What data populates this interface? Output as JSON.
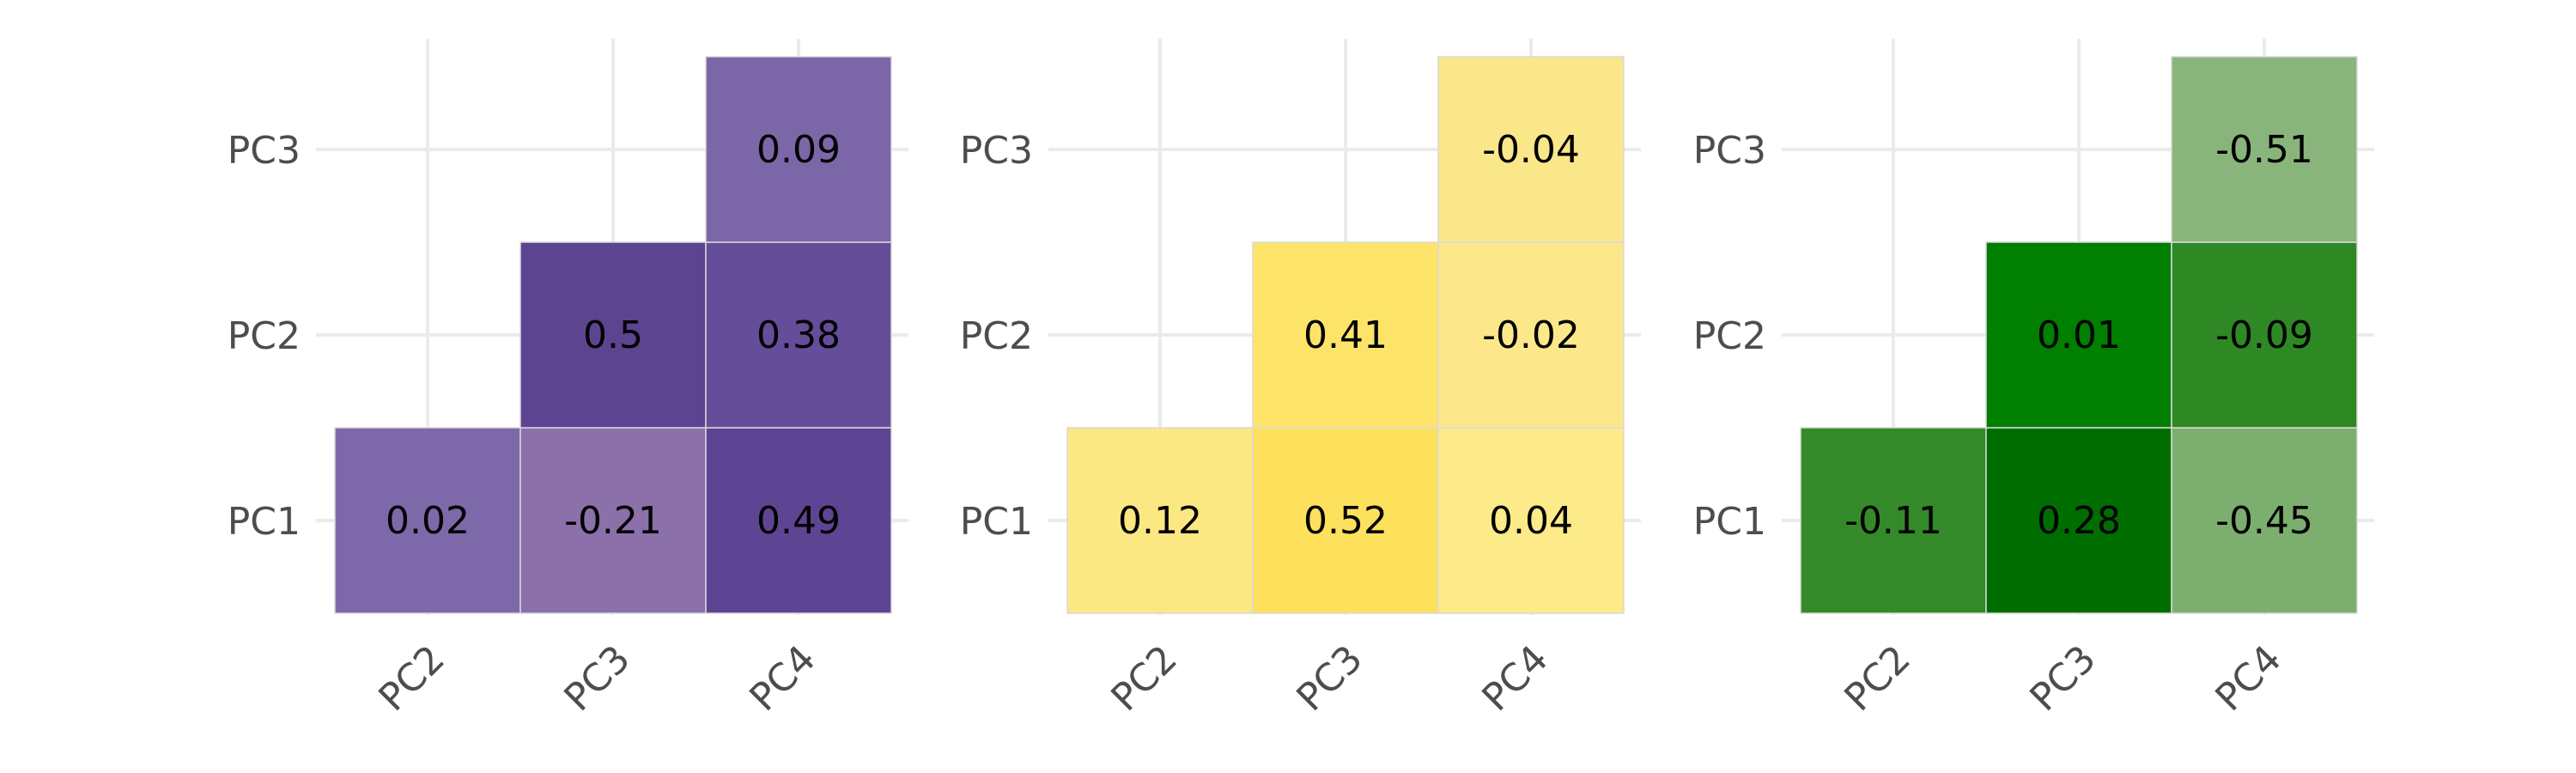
{
  "chart_data": [
    {
      "type": "heatmap",
      "x_categories": [
        "PC2",
        "PC3",
        "PC4"
      ],
      "y_categories": [
        "PC1",
        "PC2",
        "PC3"
      ],
      "cells": [
        {
          "x": "PC2",
          "y": "PC1",
          "value": 0.02,
          "label": "0.02",
          "color": "#7d69aa"
        },
        {
          "x": "PC3",
          "y": "PC1",
          "value": -0.21,
          "label": "-0.21",
          "color": "#8b70aa"
        },
        {
          "x": "PC4",
          "y": "PC1",
          "value": 0.49,
          "label": "0.49",
          "color": "#5e4593"
        },
        {
          "x": "PC3",
          "y": "PC2",
          "value": 0.5,
          "label": "0.5",
          "color": "#5c4491"
        },
        {
          "x": "PC4",
          "y": "PC2",
          "value": 0.38,
          "label": "0.38",
          "color": "#654d99"
        },
        {
          "x": "PC4",
          "y": "PC3",
          "value": 0.09,
          "label": "0.09",
          "color": "#7b66a8"
        }
      ],
      "grid": true
    },
    {
      "type": "heatmap",
      "x_categories": [
        "PC2",
        "PC3",
        "PC4"
      ],
      "y_categories": [
        "PC1",
        "PC2",
        "PC3"
      ],
      "cells": [
        {
          "x": "PC2",
          "y": "PC1",
          "value": 0.12,
          "label": "0.12",
          "color": "#fce883"
        },
        {
          "x": "PC3",
          "y": "PC1",
          "value": 0.52,
          "label": "0.52",
          "color": "#fde15c"
        },
        {
          "x": "PC4",
          "y": "PC1",
          "value": 0.04,
          "label": "0.04",
          "color": "#fdea88"
        },
        {
          "x": "PC3",
          "y": "PC2",
          "value": 0.41,
          "label": "0.41",
          "color": "#fde469"
        },
        {
          "x": "PC4",
          "y": "PC2",
          "value": -0.02,
          "label": "-0.02",
          "color": "#fce88b"
        },
        {
          "x": "PC4",
          "y": "PC3",
          "value": -0.04,
          "label": "-0.04",
          "color": "#f9e78a"
        }
      ],
      "grid": true
    },
    {
      "type": "heatmap",
      "x_categories": [
        "PC2",
        "PC3",
        "PC4"
      ],
      "y_categories": [
        "PC1",
        "PC2",
        "PC3"
      ],
      "cells": [
        {
          "x": "PC2",
          "y": "PC1",
          "value": -0.11,
          "label": "-0.11",
          "color": "#348a28"
        },
        {
          "x": "PC3",
          "y": "PC1",
          "value": 0.28,
          "label": "0.28",
          "color": "#006d00"
        },
        {
          "x": "PC4",
          "y": "PC1",
          "value": -0.45,
          "label": "-0.45",
          "color": "#7caf6f"
        },
        {
          "x": "PC3",
          "y": "PC2",
          "value": 0.01,
          "label": "0.01",
          "color": "#007f00"
        },
        {
          "x": "PC4",
          "y": "PC2",
          "value": -0.09,
          "label": "-0.09",
          "color": "#2e8824"
        },
        {
          "x": "PC4",
          "y": "PC3",
          "value": -0.51,
          "label": "-0.51",
          "color": "#89b57c"
        }
      ],
      "grid": true
    }
  ]
}
